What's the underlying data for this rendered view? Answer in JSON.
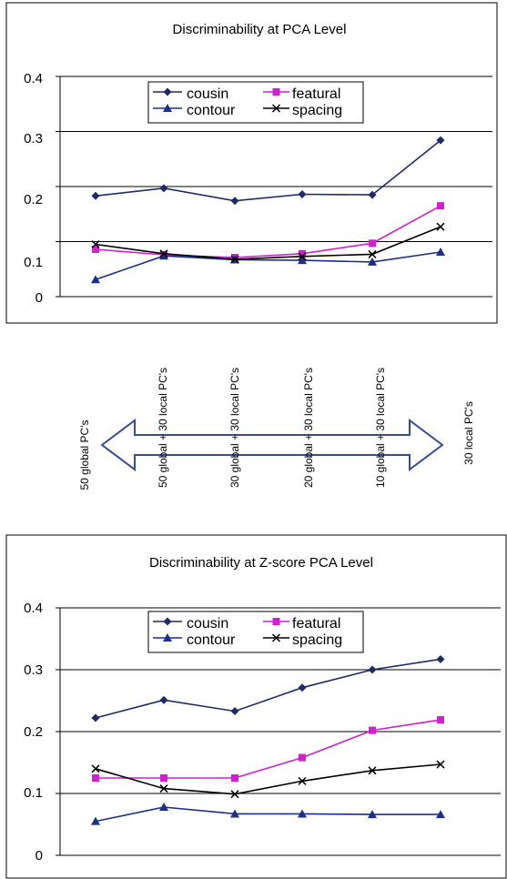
{
  "chart_data": [
    {
      "type": "line",
      "title": "Discriminability at PCA Level",
      "ylim": [
        0,
        0.4
      ],
      "yticks": [
        "0",
        "0.1",
        "0.2",
        "0.3",
        "0.4"
      ],
      "grid": "horizontal",
      "legend": "top",
      "series": [
        {
          "name": "cousin",
          "marker": "diamond",
          "color": "#1f2a66",
          "values": [
            0.183,
            0.197,
            0.174,
            0.186,
            0.185,
            0.284
          ]
        },
        {
          "name": "featural",
          "marker": "square",
          "color": "#d11fd1",
          "values": [
            0.086,
            0.076,
            0.071,
            0.078,
            0.097,
            0.165
          ]
        },
        {
          "name": "contour",
          "marker": "triangle",
          "color": "#1c2f8a",
          "values": [
            0.031,
            0.074,
            0.067,
            0.066,
            0.063,
            0.081
          ]
        },
        {
          "name": "spacing",
          "marker": "x",
          "color": "#000000",
          "values": [
            0.095,
            0.078,
            0.068,
            0.073,
            0.077,
            0.127
          ]
        }
      ]
    },
    {
      "type": "line",
      "title": "Discriminability at Z-score PCA Level",
      "ylim": [
        0,
        0.4
      ],
      "yticks": [
        "0",
        "0.1",
        "0.2",
        "0.3",
        "0.4"
      ],
      "grid": "horizontal",
      "legend": "top",
      "series": [
        {
          "name": "cousin",
          "marker": "diamond",
          "color": "#1f2a66",
          "values": [
            0.222,
            0.251,
            0.233,
            0.271,
            0.3,
            0.317
          ]
        },
        {
          "name": "featural",
          "marker": "square",
          "color": "#d11fd1",
          "values": [
            0.125,
            0.125,
            0.125,
            0.158,
            0.202,
            0.219
          ]
        },
        {
          "name": "contour",
          "marker": "triangle",
          "color": "#1c2f8a",
          "values": [
            0.055,
            0.078,
            0.067,
            0.067,
            0.066,
            0.066
          ]
        },
        {
          "name": "spacing",
          "marker": "x",
          "color": "#000000",
          "values": [
            0.14,
            0.108,
            0.099,
            0.12,
            0.137,
            0.147
          ]
        }
      ]
    }
  ],
  "x_axis_labels": [
    "50 global PC's",
    "50 global + 30 local PC's",
    "30 global + 30 local PC's",
    "20 global + 30 local PC's",
    "10 global + 30 local PC's",
    "30 local PC's"
  ],
  "arrow_color": "#3a4a9a"
}
